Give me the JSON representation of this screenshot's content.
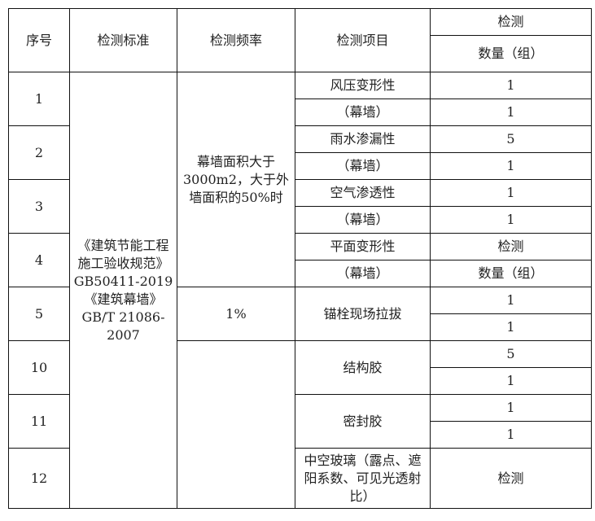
{
  "header": {
    "seq": "序号",
    "standard": "检测标准",
    "frequency": "检测频率",
    "item": "检测项目",
    "count_line1": "检测",
    "count_line2": "数量（组）"
  },
  "standard_text": "《建筑节能工程施工验收规范》GB50411-2019《建筑幕墙》GB/T 21086-2007",
  "frequencies": [
    "幕墙面积大于3000m2，大于外墙面积的50%时",
    "1%",
    ""
  ],
  "rows": [
    {
      "seq": "1",
      "items": [
        "风压变形性",
        "（幕墙）"
      ],
      "counts": [
        "1",
        "1"
      ]
    },
    {
      "seq": "2",
      "items": [
        "雨水渗漏性",
        "（幕墙）"
      ],
      "counts": [
        "5",
        "1"
      ]
    },
    {
      "seq": "3",
      "items": [
        "空气渗透性",
        "（幕墙）"
      ],
      "counts": [
        "1",
        "1"
      ]
    },
    {
      "seq": "4",
      "items": [
        "平面变形性",
        "（幕墙）"
      ],
      "counts": [
        "检测",
        "数量（组）"
      ]
    },
    {
      "seq": "5",
      "items": [
        "锚栓现场拉拔"
      ],
      "counts": [
        "1",
        "1"
      ]
    },
    {
      "seq": "10",
      "items": [
        "结构胶"
      ],
      "counts": [
        "5",
        "1"
      ]
    },
    {
      "seq": "11",
      "items": [
        "密封胶"
      ],
      "counts": [
        "1",
        "1"
      ]
    },
    {
      "seq": "12",
      "items": [
        "中空玻璃（露点、遮阳系数、可见光透射比）"
      ],
      "counts": [
        "检测"
      ]
    }
  ]
}
